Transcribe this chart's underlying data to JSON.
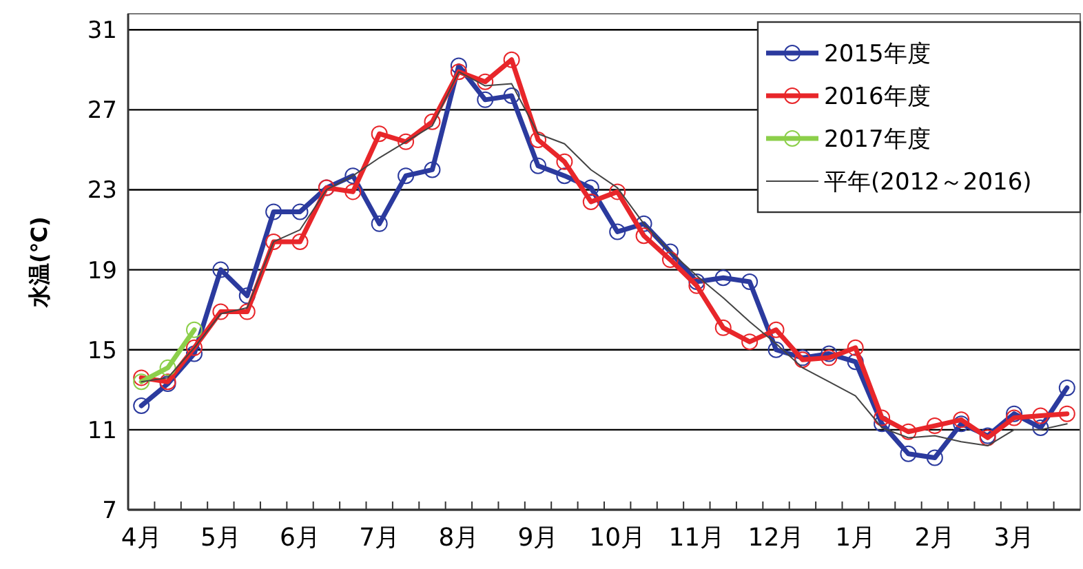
{
  "chart_data": {
    "type": "line",
    "ylabel": "水温(℃)",
    "categories": [
      "4月",
      null,
      null,
      "5月",
      null,
      null,
      "6月",
      null,
      null,
      "7月",
      null,
      null,
      "8月",
      null,
      null,
      "9月",
      null,
      null,
      "10月",
      null,
      null,
      "11月",
      null,
      null,
      "12月",
      null,
      null,
      "1月",
      null,
      null,
      "2月",
      null,
      null,
      "3月",
      null,
      null
    ],
    "ylim": [
      7,
      31.8
    ],
    "yticks": [
      7,
      11,
      15,
      19,
      23,
      27,
      31
    ],
    "grid": "y",
    "legend": "top right",
    "marker": "circle",
    "series": [
      {
        "name": "2015年度",
        "color": "#2b3a9e",
        "values": [
          12.2,
          13.3,
          14.8,
          19.0,
          17.7,
          21.9,
          21.9,
          23.1,
          23.7,
          21.3,
          23.7,
          24.0,
          29.2,
          27.5,
          27.7,
          24.2,
          23.7,
          23.1,
          20.9,
          21.3,
          19.9,
          18.4,
          18.6,
          18.4,
          15.0,
          14.6,
          14.8,
          14.4,
          11.3,
          9.8,
          9.6,
          11.3,
          10.7,
          11.8,
          11.1,
          13.1
        ]
      },
      {
        "name": "2016年度",
        "color": "#e8262a",
        "values": [
          13.6,
          13.4,
          15.1,
          16.9,
          16.9,
          20.4,
          20.4,
          23.1,
          22.9,
          25.8,
          25.4,
          26.4,
          28.9,
          28.4,
          29.5,
          25.5,
          24.4,
          22.4,
          22.9,
          20.7,
          19.5,
          18.2,
          16.1,
          15.4,
          16.0,
          14.5,
          14.6,
          15.1,
          11.6,
          10.9,
          11.2,
          11.5,
          10.6,
          11.6,
          11.7,
          11.8
        ]
      },
      {
        "name": "2017年度",
        "color": "#8ccf4a",
        "values": [
          13.4,
          14.1,
          16.0,
          null,
          null,
          null,
          null,
          null,
          null,
          null,
          null,
          null,
          null,
          null,
          null,
          null,
          null,
          null,
          null,
          null,
          null,
          null,
          null,
          null,
          null,
          null,
          null,
          null,
          null,
          null,
          null,
          null,
          null,
          null,
          null,
          null
        ]
      },
      {
        "name": "平年(2012～2016)",
        "color": "#444444",
        "marker": "none",
        "values": [
          13.4,
          13.6,
          15.1,
          16.8,
          17.1,
          20.4,
          21.0,
          23.0,
          23.7,
          24.6,
          25.4,
          26.2,
          28.9,
          28.2,
          28.3,
          25.8,
          25.3,
          24.0,
          23.1,
          21.3,
          19.9,
          18.7,
          17.6,
          16.4,
          15.3,
          14.1,
          13.4,
          12.7,
          11.1,
          10.6,
          10.7,
          10.4,
          10.2,
          11.0,
          11.0,
          11.3
        ]
      }
    ]
  }
}
